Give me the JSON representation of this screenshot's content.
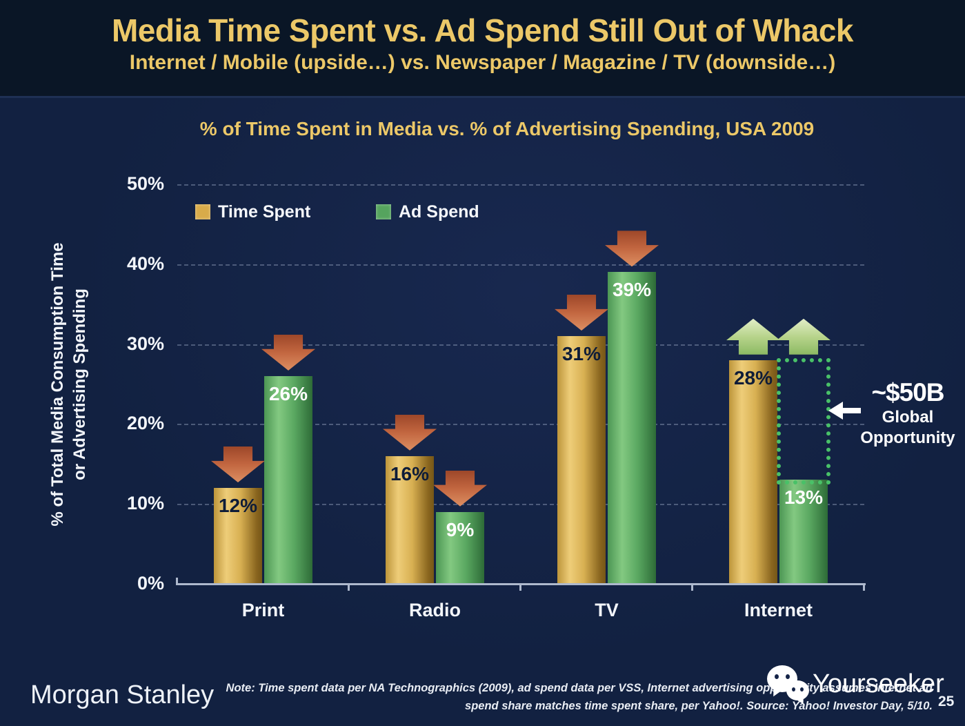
{
  "slide": {
    "title": "Media Time Spent vs. Ad Spend Still Out of Whack",
    "subtitle": "Internet / Mobile (upside…) vs. Newspaper / Magazine / TV (downside…)",
    "page_number": "25"
  },
  "chart_data": {
    "type": "bar",
    "title": "% of Time Spent in Media vs. % of Advertising Spending, USA 2009",
    "ylabel_line1": "% of Total Media Consumption Time",
    "ylabel_line2": "or Advertising Spending",
    "categories": [
      "Print",
      "Radio",
      "TV",
      "Internet"
    ],
    "series": [
      {
        "name": "Time Spent",
        "values": [
          12,
          16,
          31,
          28
        ],
        "swatch": "#d8ab4a",
        "label_color": "#0e1c38"
      },
      {
        "name": "Ad Spend",
        "values": [
          26,
          9,
          39,
          13
        ],
        "swatch": "#55a45e",
        "label_color": "#ffffff"
      }
    ],
    "value_suffix": "%",
    "ylim": [
      0,
      50
    ],
    "yticks": [
      0,
      10,
      20,
      30,
      40,
      50
    ],
    "grid": "dashed-horizontal",
    "legend_position": "top-left-inside",
    "annotations": {
      "arrows": [
        {
          "category": "Print",
          "series": "Time Spent",
          "dir": "down"
        },
        {
          "category": "Print",
          "series": "Ad Spend",
          "dir": "down"
        },
        {
          "category": "Radio",
          "series": "Time Spent",
          "dir": "down"
        },
        {
          "category": "Radio",
          "series": "Ad Spend",
          "dir": "down"
        },
        {
          "category": "TV",
          "series": "Time Spent",
          "dir": "down"
        },
        {
          "category": "TV",
          "series": "Ad Spend",
          "dir": "down"
        },
        {
          "category": "Internet",
          "series": "Time Spent",
          "dir": "up"
        },
        {
          "category": "Internet",
          "series": "Ad Spend",
          "dir": "up",
          "anchor_value": 28
        }
      ],
      "opportunity_box": {
        "category": "Internet",
        "series": "Ad Spend",
        "from_value": 13,
        "to_value": 28
      },
      "callout": {
        "amount": "~$50B",
        "line1": "Global",
        "line2": "Opportunity"
      },
      "colors": {
        "down_arrow": "#c1653f",
        "up_arrow": "#b7d48b",
        "box": "#49c168",
        "accent_gold": "#ecc868"
      }
    }
  },
  "footer": {
    "brand": "Morgan Stanley",
    "note_line1": "Note: Time spent data per NA Technographics (2009), ad spend data per VSS, Internet advertising opportunity assumes Internet ad",
    "note_line2": "spend share matches time spent share, per Yahoo!. Source: Yahoo! Investor Day, 5/10.",
    "watermark": "Yourseeker"
  }
}
